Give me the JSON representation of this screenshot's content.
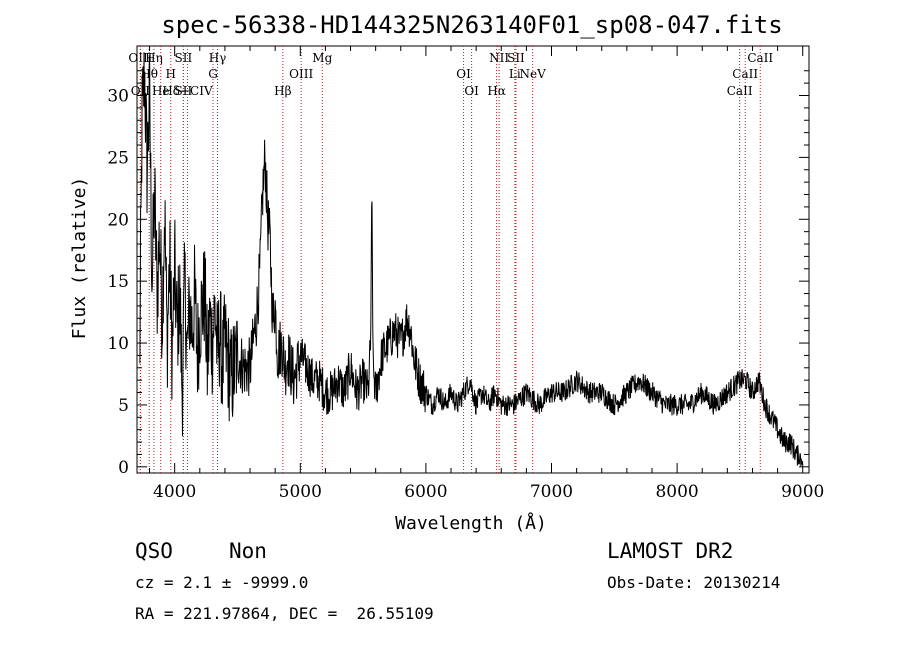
{
  "chart_data": {
    "type": "line",
    "title": "spec-56338-HD144325N263140F01_sp08-047.fits",
    "xlabel": "Wavelength (Å)",
    "ylabel": "Flux (relative)",
    "xlim": [
      3700,
      9050
    ],
    "ylim": [
      -0.5,
      34
    ],
    "xticks": [
      4000,
      5000,
      6000,
      7000,
      8000,
      9000
    ],
    "yticks": [
      0,
      5,
      10,
      15,
      20,
      25,
      30
    ],
    "line_color": "#000000",
    "marker_color": "#aa2222",
    "series": [
      {
        "values_x": [
          3720,
          3740,
          3760,
          3780,
          3800,
          3820,
          3840,
          3860,
          3880,
          3900,
          3920,
          3940,
          3960,
          3980,
          4000,
          4020,
          4040,
          4060,
          4080,
          4100,
          4120,
          4140,
          4160,
          4180,
          4200,
          4220,
          4240,
          4260,
          4280,
          4300,
          4320,
          4340,
          4360,
          4380,
          4400,
          4450,
          4500,
          4550,
          4600,
          4650,
          4680,
          4700,
          4720,
          4740,
          4760,
          4780,
          4800,
          4820,
          4850,
          4880,
          4900,
          4950,
          5000,
          5050,
          5100,
          5150,
          5200,
          5250,
          5300,
          5350,
          5400,
          5450,
          5500,
          5540,
          5560,
          5570,
          5580,
          5600,
          5650,
          5700,
          5750,
          5800,
          5850,
          5880,
          5900,
          5950,
          6000,
          6050,
          6100,
          6150,
          6200,
          6250,
          6300,
          6350,
          6400,
          6450,
          6500,
          6550,
          6600,
          6650,
          6700,
          6800,
          6900,
          7000,
          7100,
          7200,
          7300,
          7400,
          7500,
          7600,
          7700,
          7800,
          7900,
          8000,
          8100,
          8200,
          8300,
          8400,
          8500,
          8550,
          8600,
          8650,
          8700,
          8750,
          8800,
          8850,
          8900,
          8950,
          9000
        ],
        "values_y": [
          7,
          28,
          32,
          24,
          30,
          15,
          22,
          14,
          19,
          12,
          21,
          10,
          17,
          9,
          16,
          11,
          14,
          6,
          15,
          9,
          13,
          11,
          14,
          9,
          12,
          13,
          14,
          8,
          12,
          10,
          13,
          9,
          11,
          8,
          10,
          7,
          9,
          8,
          8,
          12,
          16,
          22,
          25,
          20,
          18,
          12,
          13,
          9,
          10,
          8,
          9,
          7,
          9,
          8,
          7,
          7,
          6,
          6,
          7,
          6,
          8,
          6,
          7,
          6,
          10,
          22,
          8,
          6,
          9,
          10,
          11,
          10,
          12,
          11,
          9,
          7,
          6,
          5,
          6,
          5,
          6,
          5,
          6,
          7,
          5,
          6,
          5,
          6,
          5,
          5,
          5,
          6,
          5,
          6,
          6,
          7,
          6,
          6,
          5,
          6,
          7,
          6,
          5,
          5,
          5,
          6,
          5,
          6,
          7,
          7,
          6,
          7,
          5,
          4,
          3,
          2,
          2,
          1,
          0.5
        ]
      }
    ],
    "line_markers": [
      {
        "label": "OIII",
        "x": 3727,
        "row": 1
      },
      {
        "label": "Hη",
        "x": 3835,
        "row": 1
      },
      {
        "label": "SII",
        "x": 4069,
        "row": 1
      },
      {
        "label": "Hγ",
        "x": 4341,
        "row": 1
      },
      {
        "label": "Mg",
        "x": 5175,
        "row": 1
      },
      {
        "label": "NII",
        "x": 6583,
        "row": 1
      },
      {
        "label": "SII",
        "x": 6717,
        "row": 1
      },
      {
        "label": "CaII",
        "x": 8662,
        "row": 1
      },
      {
        "label": "Hθ",
        "x": 3797,
        "row": 2
      },
      {
        "label": "H",
        "x": 3969,
        "row": 2
      },
      {
        "label": "G",
        "x": 4305,
        "row": 2
      },
      {
        "label": "OIII",
        "x": 5007,
        "row": 2
      },
      {
        "label": "OI",
        "x": 6300,
        "row": 2
      },
      {
        "label": "Li",
        "x": 6708,
        "row": 2
      },
      {
        "label": "NeV",
        "x": 6850,
        "row": 2
      },
      {
        "label": "CaII",
        "x": 8542,
        "row": 2
      },
      {
        "label": "OII",
        "x": 3727,
        "row": 3
      },
      {
        "label": "He",
        "x": 3889,
        "row": 3
      },
      {
        "label": "SII",
        "x": 4069,
        "row": 3
      },
      {
        "label": "Hδ+CIV",
        "x": 4102,
        "row": 3
      },
      {
        "label": "Hβ",
        "x": 4861,
        "row": 3
      },
      {
        "label": "OI",
        "x": 6364,
        "row": 3
      },
      {
        "label": "Hα",
        "x": 6563,
        "row": 3
      },
      {
        "label": "CaII",
        "x": 8498,
        "row": 3
      }
    ]
  },
  "info": {
    "class": "QSO",
    "subclass": "Non",
    "cz_line": "cz = 2.1 ± -9999.0",
    "radec_line": "RA = 221.97864, DEC =  26.55109",
    "survey": "LAMOST DR2",
    "obs_date": "Obs-Date: 20130214"
  }
}
